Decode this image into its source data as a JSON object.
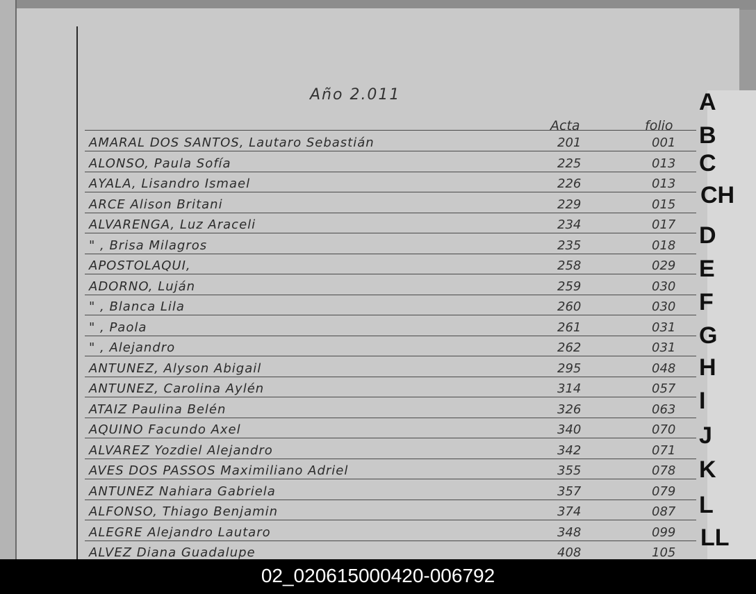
{
  "title": "Año 2.011",
  "headers": {
    "acta": "Acta",
    "folio": "folio"
  },
  "rows": [
    {
      "name": "AMARAL DOS SANTOS, Lautaro Sebastián",
      "acta": "201",
      "folio": "001"
    },
    {
      "name": "ALONSO, Paula Sofía",
      "acta": "225",
      "folio": "013"
    },
    {
      "name": "AYALA, Lisandro Ismael",
      "acta": "226",
      "folio": "013"
    },
    {
      "name": "ARCE Alison Britani",
      "acta": "229",
      "folio": "015"
    },
    {
      "name": "ALVARENGA, Luz Araceli",
      "acta": "234",
      "folio": "017"
    },
    {
      "name": "      \"      , Brisa Milagros",
      "acta": "235",
      "folio": "018"
    },
    {
      "name": "APOSTOLAQUI,",
      "acta": "258",
      "folio": "029"
    },
    {
      "name": "ADORNO, Luján",
      "acta": "259",
      "folio": "030"
    },
    {
      "name": "    \"    , Blanca Lila",
      "acta": "260",
      "folio": "030"
    },
    {
      "name": "    \"    , Paola",
      "acta": "261",
      "folio": "031"
    },
    {
      "name": "    \"    , Alejandro",
      "acta": "262",
      "folio": "031"
    },
    {
      "name": "ANTUNEZ, Alyson Abigail",
      "acta": "295",
      "folio": "048"
    },
    {
      "name": "ANTUNEZ, Carolina Aylén",
      "acta": "314",
      "folio": "057"
    },
    {
      "name": "ATAIZ Paulina Belén",
      "acta": "326",
      "folio": "063"
    },
    {
      "name": "AQUINO Facundo Axel",
      "acta": "340",
      "folio": "070"
    },
    {
      "name": "ALVAREZ Yozdiel Alejandro",
      "acta": "342",
      "folio": "071"
    },
    {
      "name": "AVES DOS PASSOS Maximiliano Adriel",
      "acta": "355",
      "folio": "078"
    },
    {
      "name": "ANTUNEZ Nahiara Gabriela",
      "acta": "357",
      "folio": "079"
    },
    {
      "name": "ALFONSO, Thiago Benjamin",
      "acta": "374",
      "folio": "087"
    },
    {
      "name": "ALEGRE Alejandro Lautaro",
      "acta": "348",
      "folio": "099"
    },
    {
      "name": "ALVEZ Diana Guadalupe",
      "acta": "408",
      "folio": "105"
    }
  ],
  "index_tabs": [
    "A",
    "B",
    "C",
    "CH",
    "D",
    "E",
    "F",
    "G",
    "H",
    "I",
    "J",
    "K",
    "L",
    "LL"
  ],
  "caption": "02_020615000420-006792"
}
